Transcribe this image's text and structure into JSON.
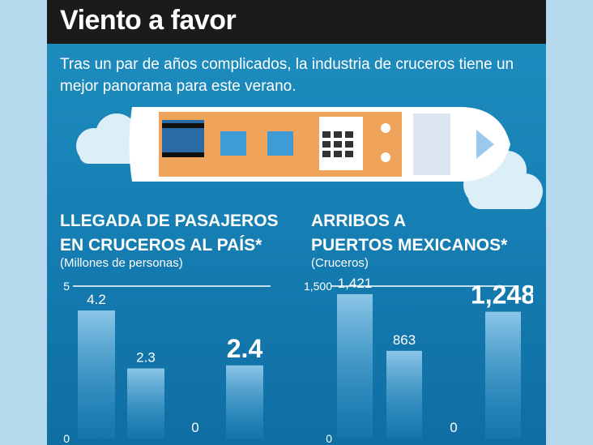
{
  "header": {
    "title": "Viento a favor",
    "subtitle": "Tras un par de años complicados, la industria de cruceros tiene un mejor panorama para este verano."
  },
  "chart_data": [
    {
      "type": "bar",
      "title_line1": "LLEGADA DE PASAJEROS",
      "title_line2": "EN CRUCEROS AL PAÍS*",
      "unit": "(Millones de personas)",
      "values": [
        4.2,
        2.3,
        0,
        2.4
      ],
      "labels": [
        "4.2",
        "2.3",
        "0",
        "2.4"
      ],
      "highlight_index": 3,
      "ylim": [
        0,
        5
      ],
      "yticks": [
        "0",
        "5"
      ]
    },
    {
      "type": "bar",
      "title_line1": "ARRIBOS A",
      "title_line2": "PUERTOS MEXICANOS*",
      "unit": "(Cruceros)",
      "values": [
        1421,
        863,
        0,
        1248
      ],
      "labels": [
        "1,421",
        "863",
        "0",
        "1,248"
      ],
      "highlight_index": 3,
      "ylim": [
        0,
        1500
      ],
      "yticks": [
        "0",
        "1,500"
      ]
    }
  ],
  "colors": {
    "background": "#1782b6",
    "title_bar": "#1b1b1b",
    "bar_top": "#8cc6e8",
    "bar_bottom": "#1f86bd",
    "ship_deck": "#f0a35a",
    "cloud": "#dceef8"
  }
}
